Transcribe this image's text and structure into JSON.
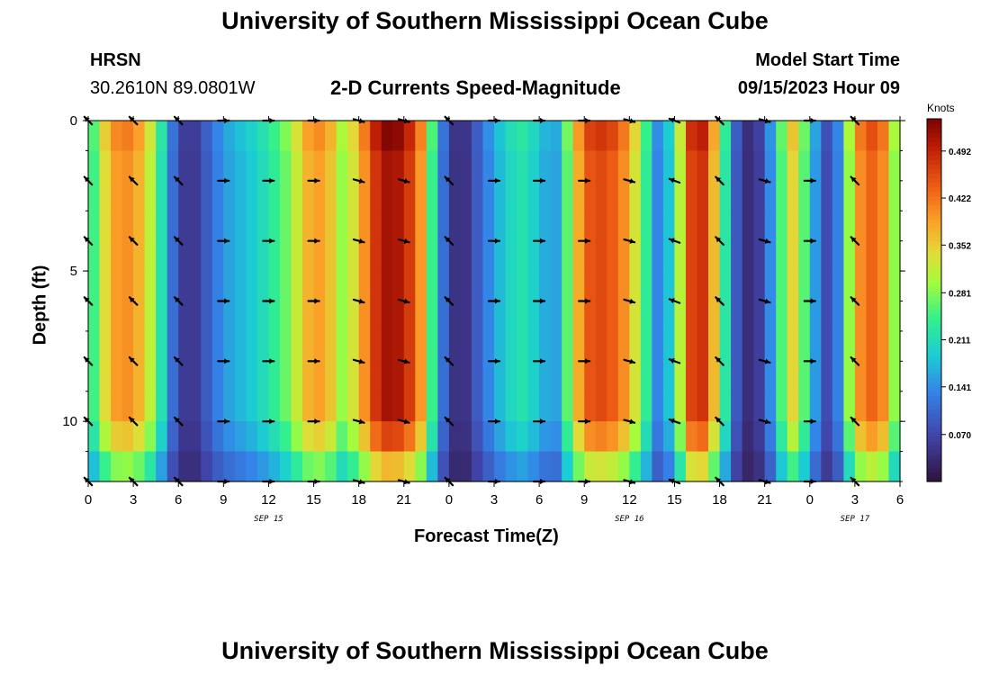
{
  "header": {
    "main_title": "University of Southern Mississippi Ocean Cube",
    "station": "HRSN",
    "coordinates": "30.2610N  89.0801W",
    "plot_title": "2-D Currents Speed-Magnitude",
    "model_start_label": "Model Start Time",
    "model_start_value": "09/15/2023 Hour 09"
  },
  "footer": {
    "main_title": "University of Southern Mississippi Ocean Cube"
  },
  "chart_data": {
    "type": "heatmap",
    "title": "2-D Currents Speed-Magnitude",
    "xlabel": "Forecast Time(Z)",
    "ylabel": "Depth (ft)",
    "x_range_hours": [
      0,
      54
    ],
    "y_range_ft": [
      0,
      12
    ],
    "x_tick_labels": [
      "0",
      "3",
      "6",
      "9",
      "12",
      "15",
      "18",
      "21",
      "0",
      "3",
      "6",
      "9",
      "12",
      "15",
      "18",
      "21",
      "0",
      "3",
      "6"
    ],
    "y_tick_labels": [
      "0",
      "5",
      "10"
    ],
    "y_tick_values": [
      0,
      5,
      10
    ],
    "date_labels": [
      {
        "text": "SEP 15",
        "hour": 12
      },
      {
        "text": "SEP 16",
        "hour": 36
      },
      {
        "text": "SEP 17",
        "hour": 51
      }
    ],
    "colorbar": {
      "unit": "Knots",
      "min": 0.0,
      "max": 0.54,
      "tick_values": [
        0.07,
        0.141,
        0.211,
        0.281,
        0.352,
        0.422,
        0.492
      ],
      "tick_labels": [
        "0.070",
        "0.141",
        "0.211",
        "0.281",
        "0.352",
        "0.422",
        "0.492"
      ]
    },
    "depth_rows_ft": [
      0.5,
      1.5,
      2.5,
      3.5,
      4.5,
      5.5,
      6.5,
      7.5,
      8.5,
      9.5,
      10.5,
      11.5
    ],
    "speed_profile_hours": [
      0,
      1,
      2,
      3,
      4,
      5,
      6,
      7,
      8,
      9,
      10,
      11,
      12,
      13,
      14,
      15,
      16,
      17,
      18,
      19,
      20,
      21,
      22,
      23,
      24,
      25,
      26,
      27,
      28,
      29,
      30,
      31,
      32,
      33,
      34,
      35,
      36,
      37,
      38,
      39,
      40,
      41,
      42,
      43,
      44,
      45,
      46,
      47,
      48,
      49,
      50,
      51,
      52,
      53,
      54
    ],
    "speed_profile_knots": [
      0.2,
      0.33,
      0.4,
      0.4,
      0.33,
      0.2,
      0.06,
      0.05,
      0.1,
      0.15,
      0.17,
      0.19,
      0.22,
      0.26,
      0.33,
      0.4,
      0.37,
      0.28,
      0.36,
      0.47,
      0.52,
      0.5,
      0.42,
      0.22,
      0.05,
      0.04,
      0.1,
      0.16,
      0.2,
      0.22,
      0.18,
      0.14,
      0.28,
      0.44,
      0.46,
      0.44,
      0.38,
      0.25,
      0.12,
      0.22,
      0.46,
      0.48,
      0.3,
      0.1,
      0.03,
      0.08,
      0.24,
      0.36,
      0.2,
      0.07,
      0.14,
      0.38,
      0.44,
      0.4,
      0.22
    ],
    "arrow_columns_hours": [
      0,
      3,
      6,
      9,
      12,
      15,
      18,
      21,
      24,
      27,
      30,
      33,
      36,
      39,
      42,
      45,
      48,
      51
    ],
    "arrow_depths_ft": [
      0,
      2,
      4,
      6,
      8,
      10,
      12
    ],
    "arrow_directions_deg": [
      225,
      225,
      225,
      0,
      0,
      0,
      15,
      15,
      225,
      0,
      0,
      0,
      15,
      200,
      225,
      15,
      0,
      225
    ]
  }
}
